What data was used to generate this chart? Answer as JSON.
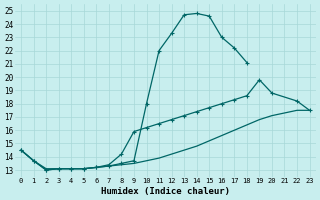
{
  "xlabel": "Humidex (Indice chaleur)",
  "xlim": [
    -0.5,
    23.5
  ],
  "ylim": [
    12.5,
    25.5
  ],
  "yticks": [
    13,
    14,
    15,
    16,
    17,
    18,
    19,
    20,
    21,
    22,
    23,
    24,
    25
  ],
  "xticks": [
    0,
    1,
    2,
    3,
    4,
    5,
    6,
    7,
    8,
    9,
    10,
    11,
    12,
    13,
    14,
    15,
    16,
    17,
    18,
    19,
    20,
    21,
    22,
    23
  ],
  "bg_color": "#c8eeee",
  "line_color": "#006666",
  "grid_color": "#a8d8d8",
  "line1_x": [
    0,
    1,
    2,
    3,
    4,
    5,
    6,
    7,
    8,
    9,
    10,
    11,
    12,
    13,
    14,
    15,
    16,
    17,
    18
  ],
  "line1_y": [
    14.5,
    13.7,
    13.0,
    13.1,
    13.1,
    13.1,
    13.2,
    13.3,
    13.5,
    13.7,
    18.0,
    22.0,
    23.3,
    24.7,
    24.8,
    24.6,
    23.0,
    22.2,
    21.1
  ],
  "line2_x": [
    0,
    1,
    2,
    3,
    4,
    5,
    6,
    7,
    8,
    9,
    10,
    11,
    12,
    13,
    14,
    15,
    16,
    17,
    18,
    19,
    20,
    22,
    23
  ],
  "line2_y": [
    14.5,
    13.7,
    13.0,
    13.1,
    13.1,
    13.1,
    13.2,
    13.4,
    14.2,
    15.9,
    16.2,
    16.5,
    16.8,
    17.1,
    17.4,
    17.7,
    18.0,
    18.3,
    18.6,
    19.8,
    18.8,
    18.2,
    17.5
  ],
  "line3_x": [
    0,
    1,
    2,
    3,
    4,
    5,
    6,
    7,
    8,
    9,
    10,
    11,
    12,
    13,
    14,
    15,
    16,
    17,
    18,
    19,
    20,
    21,
    22,
    23
  ],
  "line3_y": [
    14.5,
    13.7,
    13.1,
    13.1,
    13.1,
    13.1,
    13.2,
    13.3,
    13.4,
    13.5,
    13.7,
    13.9,
    14.2,
    14.5,
    14.8,
    15.2,
    15.6,
    16.0,
    16.4,
    16.8,
    17.1,
    17.3,
    17.5,
    17.5
  ]
}
